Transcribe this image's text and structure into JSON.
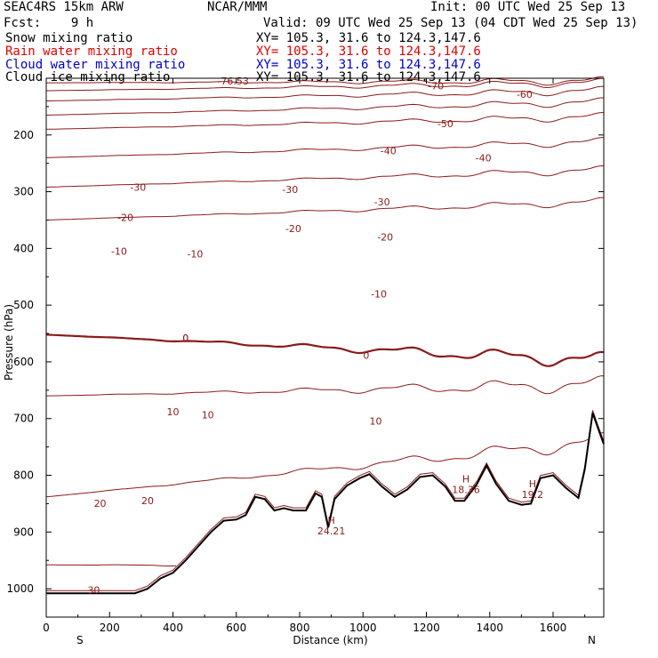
{
  "header": {
    "model": "SEAC4RS 15km ARW",
    "center": "NCAR/MMM",
    "init": "Init: 00 UTC Wed 25 Sep 13",
    "fcst": "Fcst:    9 h",
    "valid": "Valid: 09 UTC Wed 25 Sep 13 (04 CDT Wed 25 Sep 13)",
    "fields": [
      {
        "label": "Snow mixing ratio",
        "xy": "XY= 105.3, 31.6 to 124.3,147.6",
        "color": "#000000"
      },
      {
        "label": "Rain water mixing ratio",
        "xy": "XY= 105.3, 31.6 to 124.3,147.6",
        "color": "#e00000"
      },
      {
        "label": "Cloud water mixing ratio",
        "xy": "XY= 105.3, 31.6 to 124.3,147.6",
        "color": "#0000d0"
      },
      {
        "label": "Cloud ice mixing ratio",
        "xy": "XY= 105.3, 31.6 to 124.3,147.6",
        "color": "#000000"
      }
    ]
  },
  "chart_data": {
    "type": "line",
    "title": "",
    "xlabel": "Distance (km)",
    "ylabel": "Pressure (hPa)",
    "xlim": [
      0,
      1760
    ],
    "ylim": [
      1050,
      100
    ],
    "x_ticks": [
      0,
      200,
      400,
      600,
      800,
      1000,
      1200,
      1400,
      1600
    ],
    "y_ticks": [
      200,
      300,
      400,
      500,
      600,
      700,
      800,
      900,
      1000
    ],
    "x_end_labels": {
      "left": "S",
      "right": "N"
    },
    "isotherm_color": "#8b1a1a",
    "isotherms": [
      {
        "temp": -76.53,
        "p_left": 108,
        "p_right": 105
      },
      {
        "temp": -70,
        "p_left": 122,
        "p_right": 108
      },
      {
        "temp": -60,
        "p_left": 140,
        "p_right": 122
      },
      {
        "temp": -50,
        "p_left": 165,
        "p_right": 142
      },
      {
        "temp": -40,
        "p_left": 190,
        "p_right": 168
      },
      {
        "temp": -30,
        "p_left": 240,
        "p_right": 212
      },
      {
        "temp": -20,
        "p_left": 292,
        "p_right": 262
      },
      {
        "temp": -10,
        "p_left": 350,
        "p_right": 318
      },
      {
        "temp": 0,
        "p_left": 552,
        "p_right": 598
      },
      {
        "temp": 10,
        "p_left": 660,
        "p_right": 640
      },
      {
        "temp": 20,
        "p_left": 838,
        "p_right": 740
      },
      {
        "temp": 30,
        "p_left": 958,
        "p_right": 960
      }
    ],
    "contour_labels": [
      {
        "text": "-76.53",
        "x": 590,
        "p": 105
      },
      {
        "text": "-70",
        "x": 1230,
        "p": 113
      },
      {
        "text": "-60",
        "x": 1510,
        "p": 128
      },
      {
        "text": "-50",
        "x": 1260,
        "p": 180
      },
      {
        "text": "-40",
        "x": 1080,
        "p": 228
      },
      {
        "text": "-40",
        "x": 1380,
        "p": 240
      },
      {
        "text": "-30",
        "x": 290,
        "p": 292
      },
      {
        "text": "-30",
        "x": 770,
        "p": 296
      },
      {
        "text": "-30",
        "x": 1060,
        "p": 318
      },
      {
        "text": "-20",
        "x": 250,
        "p": 345
      },
      {
        "text": "-20",
        "x": 780,
        "p": 365
      },
      {
        "text": "-20",
        "x": 1070,
        "p": 380
      },
      {
        "text": "-10",
        "x": 230,
        "p": 405
      },
      {
        "text": "-10",
        "x": 470,
        "p": 410
      },
      {
        "text": "-10",
        "x": 1050,
        "p": 480
      },
      {
        "text": "0",
        "x": 440,
        "p": 558
      },
      {
        "text": "0",
        "x": 440,
        "p": 558
      },
      {
        "text": "0",
        "x": 1010,
        "p": 588
      },
      {
        "text": "10",
        "x": 400,
        "p": 688
      },
      {
        "text": "10",
        "x": 510,
        "p": 693
      },
      {
        "text": "10",
        "x": 1040,
        "p": 704
      },
      {
        "text": "20",
        "x": 170,
        "p": 849
      },
      {
        "text": "20",
        "x": 320,
        "p": 845
      },
      {
        "text": "30",
        "x": 150,
        "p": 1002
      }
    ],
    "maxima": [
      {
        "letter": "H",
        "value": "24.21",
        "x": 900,
        "p": 890
      },
      {
        "letter": "H",
        "value": "18.36",
        "x": 1325,
        "p": 817
      },
      {
        "letter": "H",
        "value": "19.2",
        "x": 1535,
        "p": 826
      }
    ],
    "terrain_p": [
      {
        "x": 0,
        "p": 1008
      },
      {
        "x": 100,
        "p": 1008
      },
      {
        "x": 200,
        "p": 1008
      },
      {
        "x": 280,
        "p": 1008
      },
      {
        "x": 320,
        "p": 1000
      },
      {
        "x": 360,
        "p": 982
      },
      {
        "x": 400,
        "p": 972
      },
      {
        "x": 440,
        "p": 950
      },
      {
        "x": 480,
        "p": 925
      },
      {
        "x": 520,
        "p": 900
      },
      {
        "x": 560,
        "p": 880
      },
      {
        "x": 600,
        "p": 878
      },
      {
        "x": 630,
        "p": 870
      },
      {
        "x": 660,
        "p": 838
      },
      {
        "x": 690,
        "p": 842
      },
      {
        "x": 720,
        "p": 862
      },
      {
        "x": 750,
        "p": 858
      },
      {
        "x": 780,
        "p": 862
      },
      {
        "x": 820,
        "p": 862
      },
      {
        "x": 850,
        "p": 832
      },
      {
        "x": 870,
        "p": 838
      },
      {
        "x": 890,
        "p": 892
      },
      {
        "x": 910,
        "p": 842
      },
      {
        "x": 950,
        "p": 818
      },
      {
        "x": 990,
        "p": 805
      },
      {
        "x": 1020,
        "p": 798
      },
      {
        "x": 1060,
        "p": 820
      },
      {
        "x": 1100,
        "p": 838
      },
      {
        "x": 1140,
        "p": 825
      },
      {
        "x": 1180,
        "p": 803
      },
      {
        "x": 1220,
        "p": 800
      },
      {
        "x": 1260,
        "p": 820
      },
      {
        "x": 1290,
        "p": 845
      },
      {
        "x": 1320,
        "p": 845
      },
      {
        "x": 1360,
        "p": 815
      },
      {
        "x": 1390,
        "p": 783
      },
      {
        "x": 1420,
        "p": 815
      },
      {
        "x": 1460,
        "p": 845
      },
      {
        "x": 1500,
        "p": 852
      },
      {
        "x": 1530,
        "p": 850
      },
      {
        "x": 1560,
        "p": 805
      },
      {
        "x": 1600,
        "p": 800
      },
      {
        "x": 1640,
        "p": 822
      },
      {
        "x": 1680,
        "p": 840
      },
      {
        "x": 1700,
        "p": 790
      },
      {
        "x": 1725,
        "p": 690
      },
      {
        "x": 1745,
        "p": 722
      },
      {
        "x": 1760,
        "p": 745
      }
    ]
  }
}
